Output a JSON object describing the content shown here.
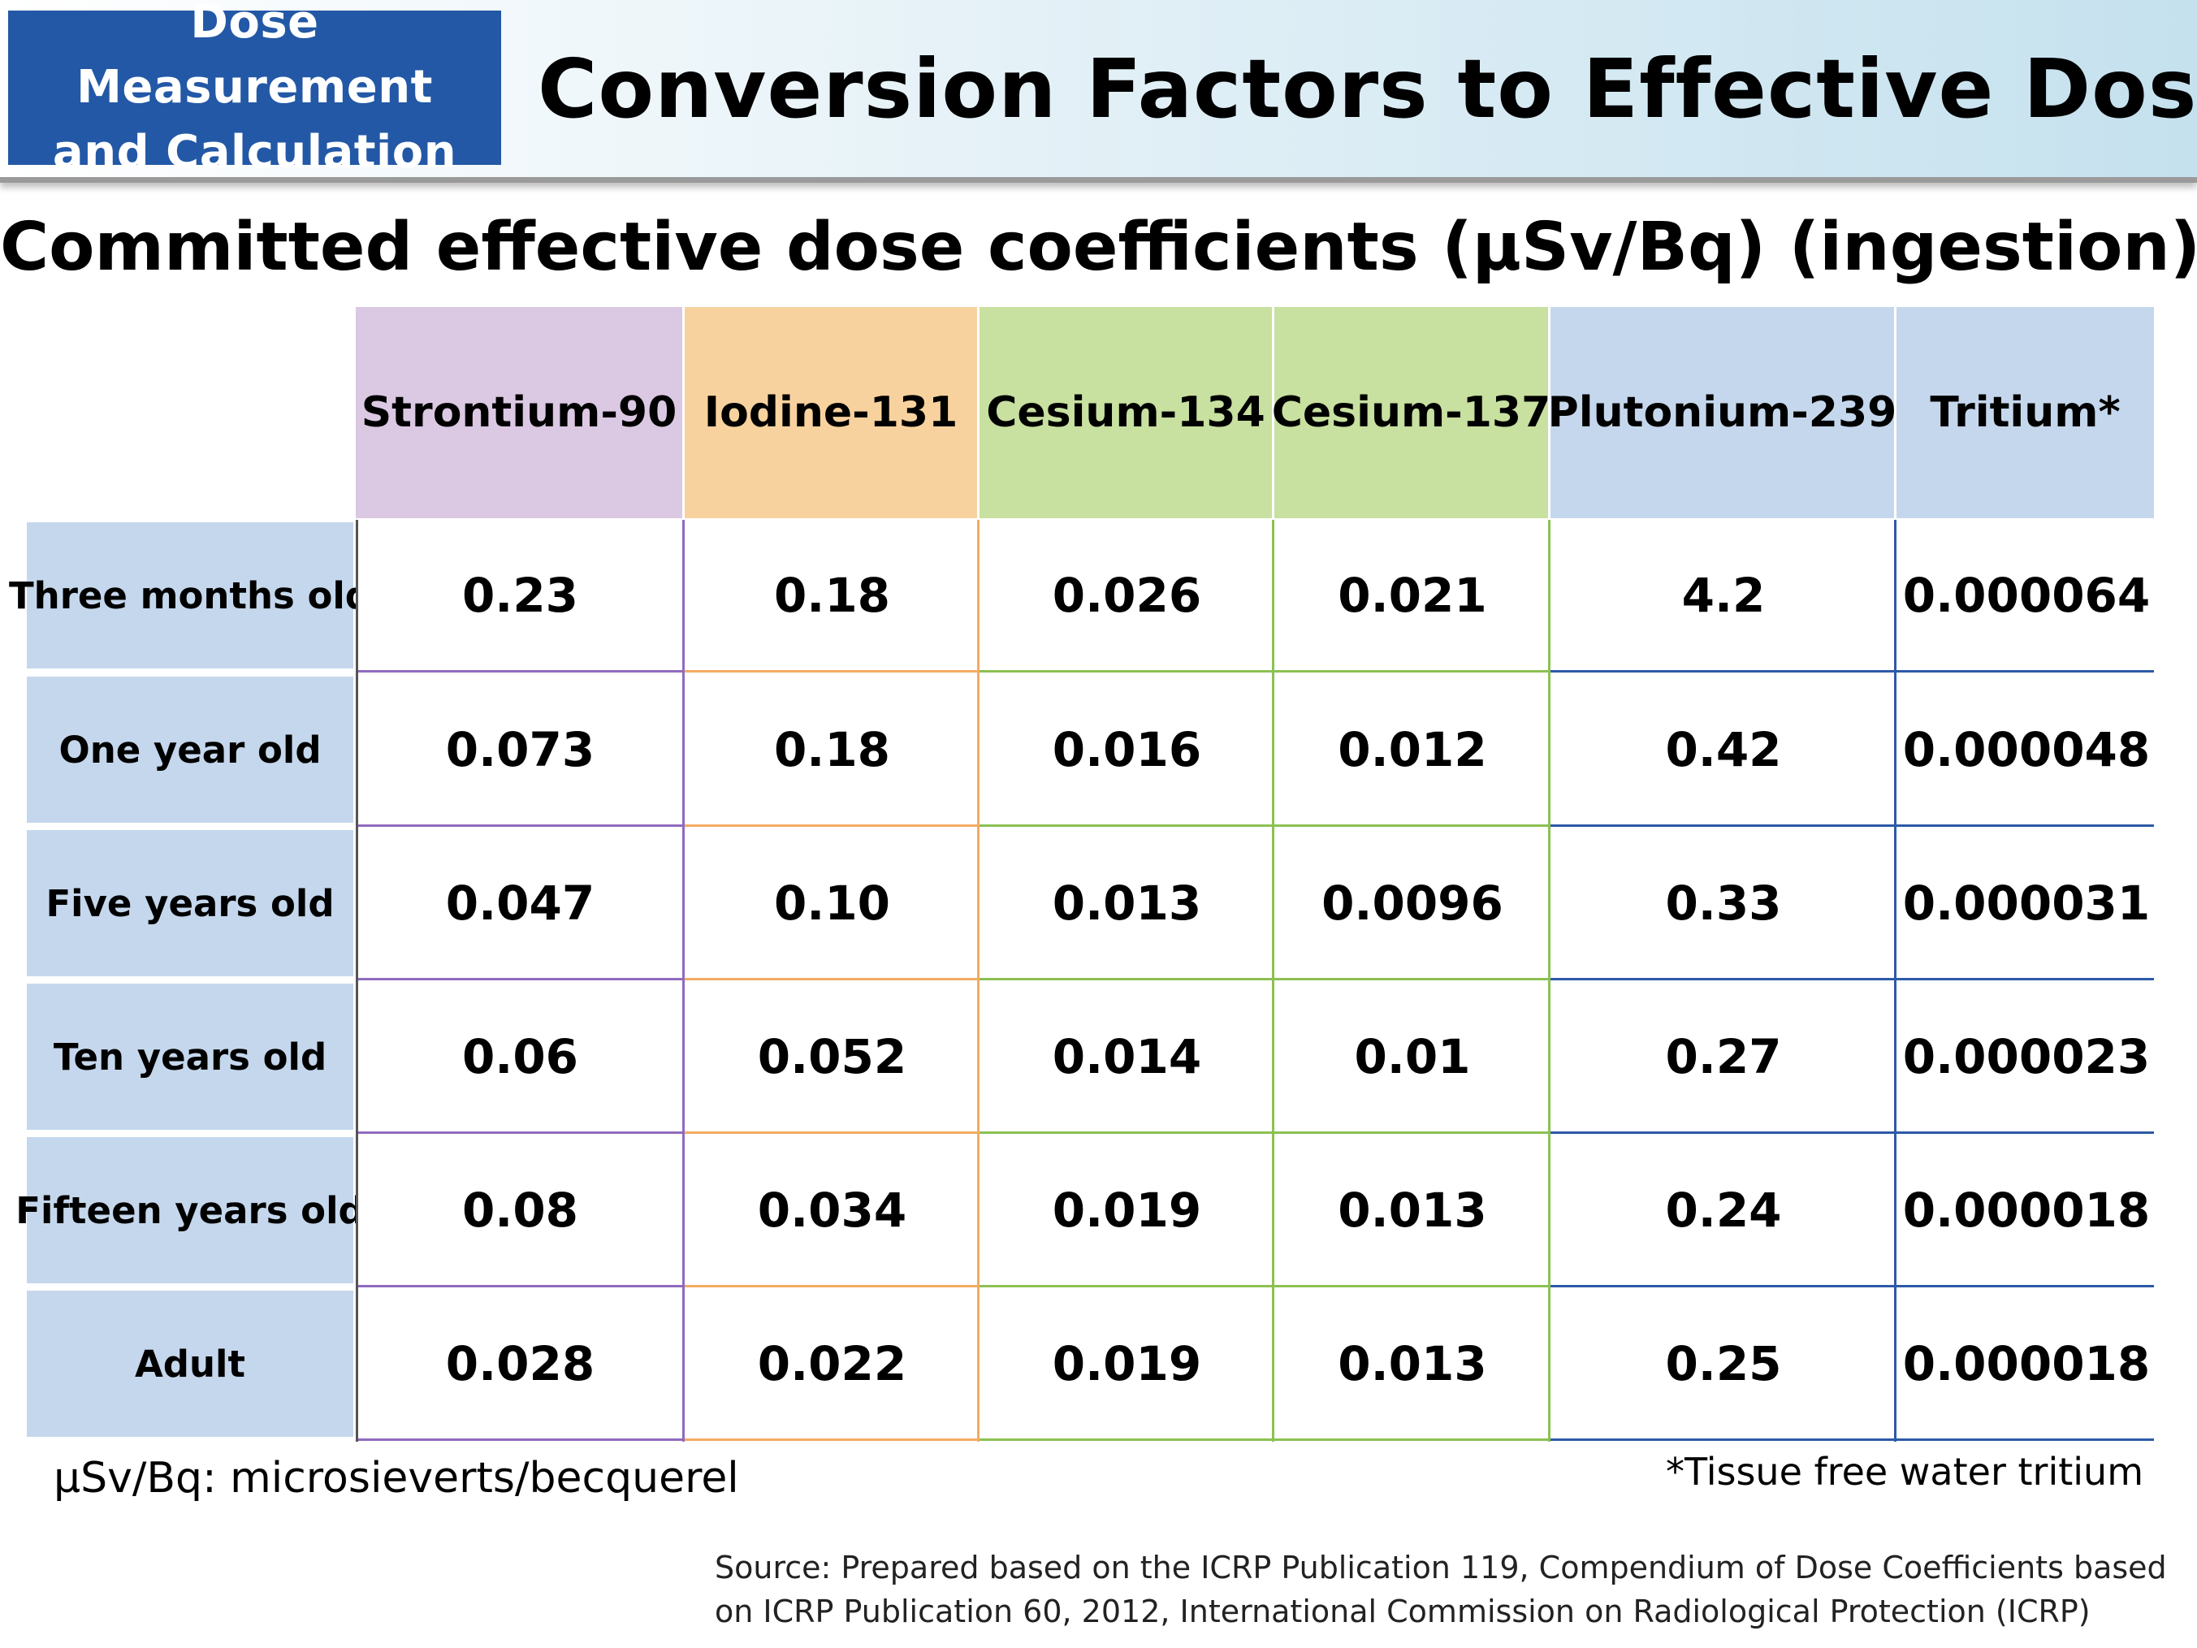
{
  "header": {
    "badge_line1": "Dose Measurement",
    "badge_line2": "and Calculation",
    "title": "Conversion Factors to Effective Doses",
    "badge_color": "#2358a6"
  },
  "subtitle": "Committed effective dose coefficients (μSv/Bq) (ingestion)",
  "table": {
    "columns": [
      {
        "label": "Strontium-90",
        "header_color": "#dbc8e2",
        "line_color": "#8f6bbf"
      },
      {
        "label": "Iodine-131",
        "header_color": "#f8d29e",
        "line_color": "#f4ab62"
      },
      {
        "label": "Cesium-134",
        "header_color": "#c8e0a0",
        "line_color": "#8cc152"
      },
      {
        "label": "Cesium-137",
        "header_color": "#c8e0a0",
        "line_color": "#8cc152"
      },
      {
        "label": "Plutonium-239",
        "header_color": "#c5d7ec",
        "line_color": "#2d5aa8"
      },
      {
        "label": "Tritium*",
        "header_color": "#c5d7ec",
        "line_color": "#2d5aa8"
      }
    ],
    "row_header_color": "#c5d7ec",
    "rows": [
      {
        "label": "Three months old",
        "values": [
          "0.23",
          "0.18",
          "0.026",
          "0.021",
          "4.2",
          "0.000064"
        ]
      },
      {
        "label": "One year old",
        "values": [
          "0.073",
          "0.18",
          "0.016",
          "0.012",
          "0.42",
          "0.000048"
        ]
      },
      {
        "label": "Five years old",
        "values": [
          "0.047",
          "0.10",
          "0.013",
          "0.0096",
          "0.33",
          "0.000031"
        ]
      },
      {
        "label": "Ten years old",
        "values": [
          "0.06",
          "0.052",
          "0.014",
          "0.01",
          "0.27",
          "0.000023"
        ]
      },
      {
        "label": "Fifteen years old",
        "values": [
          "0.08",
          "0.034",
          "0.019",
          "0.013",
          "0.24",
          "0.000018"
        ]
      },
      {
        "label": "Adult",
        "values": [
          "0.028",
          "0.022",
          "0.019",
          "0.013",
          "0.25",
          "0.000018"
        ]
      }
    ]
  },
  "unit_note": "μSv/Bq: microsieverts/becquerel",
  "footnote": "*Tissue free water tritium",
  "source": "Source: Prepared based on the ICRP Publication 119, Compendium of Dose Coefficients based on ICRP Publication 60, 2012, International Commission on Radiological Protection (ICRP)"
}
